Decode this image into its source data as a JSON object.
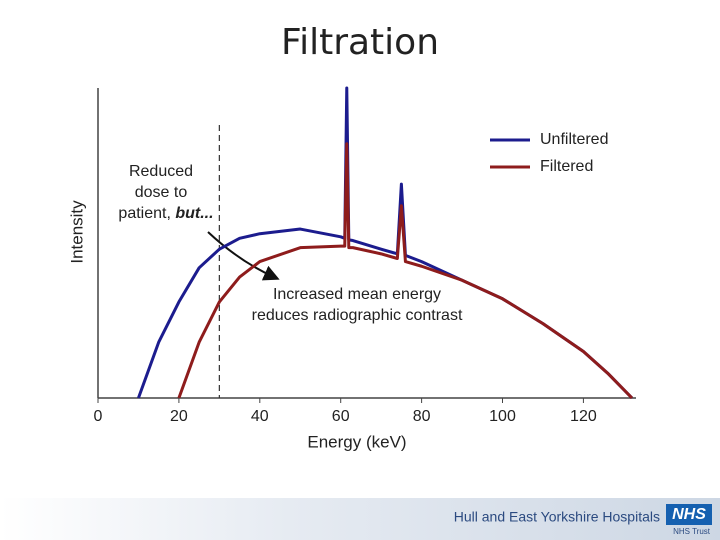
{
  "chart_data": {
    "type": "line",
    "title": "Filtration",
    "x_label": "Energy (keV)",
    "y_label": "Intensity",
    "x": [
      10,
      15,
      20,
      25,
      30,
      35,
      40,
      50,
      60,
      61,
      61.5,
      62,
      63,
      70,
      74,
      75,
      76,
      80,
      90,
      100,
      110,
      120,
      126,
      132
    ],
    "series": [
      {
        "name": "Unfiltered",
        "color": "#1c1c8e",
        "values": [
          0,
          18,
          31,
          42,
          48,
          51.5,
          53,
          54.5,
          52,
          51.5,
          100,
          51,
          50.8,
          48,
          46.5,
          69,
          46,
          44,
          38,
          32,
          24,
          15,
          8,
          0
        ]
      },
      {
        "name": "Filtered",
        "color": "#8e1c1c",
        "values": [
          null,
          null,
          0,
          18,
          31,
          39,
          44,
          48.5,
          49,
          49,
          82,
          48.5,
          48.5,
          46.5,
          45,
          62,
          44,
          42.5,
          38,
          32,
          24,
          15,
          8,
          0
        ]
      }
    ],
    "xlim": [
      0,
      133
    ],
    "ylim": [
      0,
      100
    ],
    "xticks": [
      0,
      20,
      40,
      60,
      80,
      100,
      120
    ],
    "vline": 30,
    "annotation_1": [
      "Reduced",
      "dose to",
      "patient, ",
      "but..."
    ],
    "annotation_2": [
      "Increased mean energy",
      "reduces radiographic contrast"
    ]
  },
  "footer": {
    "organisation": "Hull and East Yorkshire Hospitals",
    "trust": "NHS Trust",
    "logo": "NHS"
  }
}
